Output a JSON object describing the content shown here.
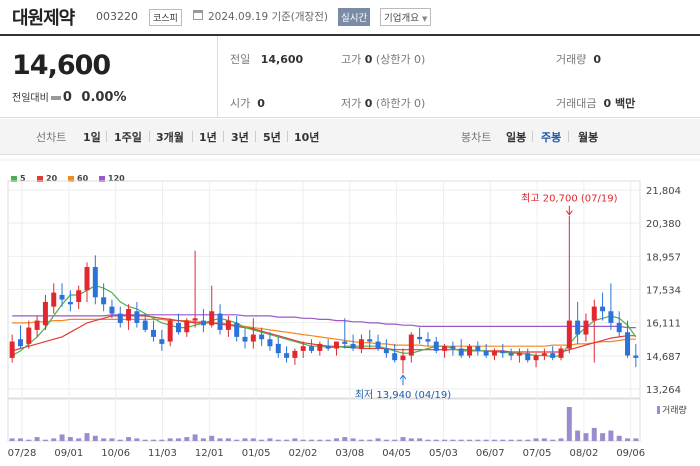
{
  "header": {
    "company_name": "대원제약",
    "stock_code": "003220",
    "market": "코스피",
    "date_text": "2024.09.19  기준(개장전)",
    "realtime_label": "실시간",
    "info_label": "기업개요"
  },
  "quote": {
    "current_price": "14,600",
    "change_label": "전일대비",
    "change_value": "0",
    "change_pct": "0.00%"
  },
  "stats": {
    "prev_close_label": "전일",
    "prev_close": "14,600",
    "high_label": "고가",
    "high": "0",
    "high_limit": "(상한가 0)",
    "volume_label": "거래량",
    "volume": "0",
    "open_label": "시가",
    "open": "0",
    "low_label": "저가",
    "low": "0",
    "low_limit": "(하한가 0)",
    "amount_label": "거래대금",
    "amount": "0 백만"
  },
  "toolbar": {
    "line_chart_label": "선차트",
    "line_periods": [
      "1일",
      "1주일",
      "3개월",
      "1년",
      "3년",
      "5년",
      "10년"
    ],
    "candle_chart_label": "봉차트",
    "candle_periods": [
      "일봉",
      "주봉",
      "월봉"
    ],
    "candle_selected": "주봉"
  },
  "legend": [
    {
      "label": "5",
      "color": "#4caf50"
    },
    {
      "label": "20",
      "color": "#e53935"
    },
    {
      "label": "60",
      "color": "#f5871f"
    },
    {
      "label": "120",
      "color": "#9c57c9"
    }
  ],
  "colors": {
    "up": "#e0282e",
    "down": "#2a73d9",
    "volume": "#9c8ccf"
  },
  "chart_data": {
    "type": "candlestick",
    "y_ticks": [
      "21,804",
      "20,380",
      "18,957",
      "17,534",
      "16,111",
      "14,687",
      "13,264"
    ],
    "ylim": [
      13264,
      21804
    ],
    "x_ticks": [
      "07/28",
      "09/01",
      "10/06",
      "11/03",
      "12/01",
      "01/05",
      "02/02",
      "03/08",
      "04/05",
      "05/03",
      "06/07",
      "07/05",
      "08/02",
      "09/06"
    ],
    "high_label": "최고 20,700 (07/19)",
    "low_label": "최저 13,940 (04/19)",
    "volume_label": "거래량",
    "ohlc": [
      [
        14600,
        15600,
        14400,
        15300
      ],
      [
        15400,
        16000,
        15000,
        15100
      ],
      [
        15200,
        16200,
        15000,
        15900
      ],
      [
        15800,
        16400,
        15500,
        16200
      ],
      [
        16000,
        17300,
        15800,
        17000
      ],
      [
        16800,
        17800,
        16500,
        17400
      ],
      [
        17300,
        17800,
        16800,
        17100
      ],
      [
        17000,
        17500,
        16600,
        16900
      ],
      [
        17000,
        17700,
        16700,
        17500
      ],
      [
        17500,
        18700,
        17000,
        18500
      ],
      [
        18500,
        19000,
        16900,
        17200
      ],
      [
        17200,
        17800,
        16600,
        16900
      ],
      [
        16800,
        17100,
        16300,
        16500
      ],
      [
        16500,
        16800,
        15900,
        16100
      ],
      [
        16200,
        16900,
        15800,
        16700
      ],
      [
        16600,
        17000,
        15900,
        16100
      ],
      [
        16200,
        16500,
        15700,
        15800
      ],
      [
        15800,
        16200,
        15300,
        15500
      ],
      [
        15400,
        15800,
        14900,
        15200
      ],
      [
        15300,
        16300,
        15100,
        16200
      ],
      [
        16100,
        16500,
        15600,
        15700
      ],
      [
        15700,
        16300,
        15500,
        16200
      ],
      [
        16200,
        19200,
        15900,
        16300
      ],
      [
        16200,
        16700,
        15700,
        16000
      ],
      [
        16000,
        17700,
        15900,
        16600
      ],
      [
        16500,
        16900,
        15600,
        15800
      ],
      [
        15800,
        16400,
        15500,
        16200
      ],
      [
        16100,
        16400,
        15300,
        15500
      ],
      [
        15500,
        15900,
        15000,
        15300
      ],
      [
        15300,
        16300,
        15000,
        15600
      ],
      [
        15600,
        15900,
        15100,
        15400
      ],
      [
        15400,
        15700,
        14900,
        15100
      ],
      [
        15200,
        15500,
        14600,
        14800
      ],
      [
        14800,
        15100,
        14400,
        14600
      ],
      [
        14600,
        15000,
        14300,
        14900
      ],
      [
        14900,
        15300,
        14600,
        15100
      ],
      [
        15100,
        15400,
        14800,
        14900
      ],
      [
        14900,
        15300,
        14700,
        15200
      ],
      [
        15100,
        15400,
        14900,
        15000
      ],
      [
        15000,
        15300,
        14700,
        15300
      ],
      [
        15300,
        16300,
        15000,
        15200
      ],
      [
        15200,
        15600,
        14900,
        15000
      ],
      [
        15000,
        15600,
        14800,
        15400
      ],
      [
        15400,
        15800,
        15000,
        15300
      ],
      [
        15300,
        15600,
        14900,
        15000
      ],
      [
        15000,
        15400,
        14600,
        14800
      ],
      [
        14800,
        15200,
        14400,
        14500
      ],
      [
        14500,
        15000,
        13940,
        14700
      ],
      [
        14700,
        15700,
        14400,
        15600
      ],
      [
        15500,
        15900,
        15200,
        15400
      ],
      [
        15400,
        15700,
        15100,
        15300
      ],
      [
        15300,
        15500,
        14800,
        14900
      ],
      [
        14900,
        15200,
        14600,
        15100
      ],
      [
        15100,
        15300,
        14700,
        15000
      ],
      [
        15000,
        15400,
        14600,
        14700
      ],
      [
        14700,
        15200,
        14600,
        15100
      ],
      [
        15100,
        15300,
        14700,
        14900
      ],
      [
        14900,
        15200,
        14600,
        14700
      ],
      [
        14700,
        15000,
        14500,
        14900
      ],
      [
        14900,
        15200,
        14600,
        14800
      ],
      [
        14800,
        15000,
        14500,
        14700
      ],
      [
        14700,
        15000,
        14400,
        14800
      ],
      [
        14800,
        15000,
        14400,
        14500
      ],
      [
        14500,
        14800,
        14200,
        14700
      ],
      [
        14700,
        15000,
        14500,
        14800
      ],
      [
        14800,
        15100,
        14500,
        14600
      ],
      [
        14600,
        15100,
        14500,
        15000
      ],
      [
        15000,
        20700,
        14800,
        16200
      ],
      [
        16200,
        17000,
        15200,
        15600
      ],
      [
        15600,
        16500,
        15300,
        16200
      ],
      [
        16200,
        17100,
        14400,
        16800
      ],
      [
        16800,
        17400,
        16200,
        16600
      ],
      [
        16600,
        17800,
        15800,
        16100
      ],
      [
        16100,
        16600,
        15500,
        15700
      ],
      [
        15700,
        16200,
        14600,
        14700
      ],
      [
        14700,
        15200,
        14200,
        14600
      ]
    ],
    "volume": [
      2,
      2,
      1,
      3,
      1,
      2,
      5,
      3,
      2,
      6,
      4,
      2,
      2,
      1,
      3,
      2,
      1,
      1,
      1,
      2,
      2,
      3,
      5,
      2,
      4,
      2,
      2,
      1,
      2,
      2,
      1,
      2,
      1,
      1,
      2,
      1,
      1,
      1,
      1,
      2,
      3,
      2,
      1,
      1,
      2,
      1,
      1,
      3,
      2,
      2,
      1,
      1,
      1,
      1,
      1,
      1,
      1,
      1,
      1,
      1,
      1,
      1,
      1,
      2,
      2,
      1,
      2,
      26,
      8,
      6,
      10,
      6,
      8,
      4,
      2,
      2
    ],
    "ma5": [
      14700,
      14900,
      15200,
      15500,
      15900,
      16400,
      16900,
      17300,
      17300,
      17500,
      17700,
      17600,
      17400,
      17000,
      16800,
      16700,
      16500,
      16300,
      16100,
      16000,
      15900,
      15900,
      16000,
      16100,
      16200,
      16300,
      16200,
      16100,
      15900,
      15800,
      15700,
      15600,
      15500,
      15400,
      15300,
      15200,
      15100,
      15100,
      15050,
      15050,
      15100,
      15100,
      15100,
      15100,
      15100,
      15000,
      14900,
      14800,
      14800,
      14900,
      15000,
      15100,
      15100,
      15000,
      14900,
      14900,
      14900,
      14900,
      14850,
      14850,
      14800,
      14800,
      14750,
      14700,
      14700,
      14650,
      14700,
      15200,
      15600,
      15900,
      16200,
      16300,
      16400,
      16300,
      16000,
      15500
    ],
    "ma20": [
      14900,
      15000,
      15100,
      15200,
      15300,
      15400,
      15500,
      15700,
      15900,
      16100,
      16200,
      16300,
      16400,
      16400,
      16400,
      16400,
      16400,
      16350,
      16300,
      16250,
      16200,
      16150,
      16100,
      16100,
      16100,
      16050,
      16000,
      15950,
      15900,
      15850,
      15750,
      15650,
      15550,
      15450,
      15350,
      15250,
      15200,
      15150,
      15100,
      15100,
      15050,
      15050,
      15000,
      15000,
      15000,
      15000,
      14950,
      14950,
      14950,
      14950,
      14950,
      14950,
      14950,
      14950,
      14950,
      14950,
      14900,
      14900,
      14900,
      14900,
      14850,
      14850,
      14850,
      14850,
      14850,
      14850,
      14850,
      14950,
      15050,
      15150,
      15250,
      15350,
      15450,
      15500,
      15550,
      15550
    ],
    "ma60": [
      16100,
      16100,
      16100,
      16150,
      16150,
      16200,
      16200,
      16250,
      16250,
      16250,
      16250,
      16250,
      16250,
      16250,
      16250,
      16250,
      16250,
      16250,
      16250,
      16200,
      16200,
      16200,
      16150,
      16150,
      16100,
      16100,
      16050,
      16000,
      15950,
      15900,
      15850,
      15800,
      15750,
      15700,
      15650,
      15600,
      15550,
      15500,
      15450,
      15400,
      15350,
      15300,
      15250,
      15250,
      15200,
      15200,
      15150,
      15150,
      15150,
      15150,
      15100,
      15100,
      15100,
      15100,
      15100,
      15100,
      15100,
      15100,
      15100,
      15100,
      15100,
      15100,
      15100,
      15100,
      15100,
      15150,
      15150,
      15150,
      15200,
      15200,
      15250,
      15300,
      15300,
      15350,
      15400,
      15400
    ],
    "ma120": [
      16400,
      16400,
      16400,
      16400,
      16400,
      16400,
      16400,
      16400,
      16400,
      16400,
      16400,
      16400,
      16450,
      16450,
      16450,
      16450,
      16450,
      16450,
      16450,
      16450,
      16450,
      16450,
      16450,
      16450,
      16450,
      16450,
      16450,
      16450,
      16400,
      16400,
      16400,
      16400,
      16350,
      16350,
      16350,
      16300,
      16300,
      16250,
      16250,
      16200,
      16200,
      16150,
      16150,
      16100,
      16100,
      16050,
      16050,
      16000,
      16000,
      15950,
      15950,
      15950,
      15950,
      15950,
      15950,
      15950,
      15950,
      15950,
      15950,
      15950,
      15950,
      15950,
      15950,
      15950,
      15950,
      15950,
      15950,
      15950,
      15950,
      15950,
      15950,
      15950,
      15950,
      15950,
      15900,
      15900
    ]
  }
}
